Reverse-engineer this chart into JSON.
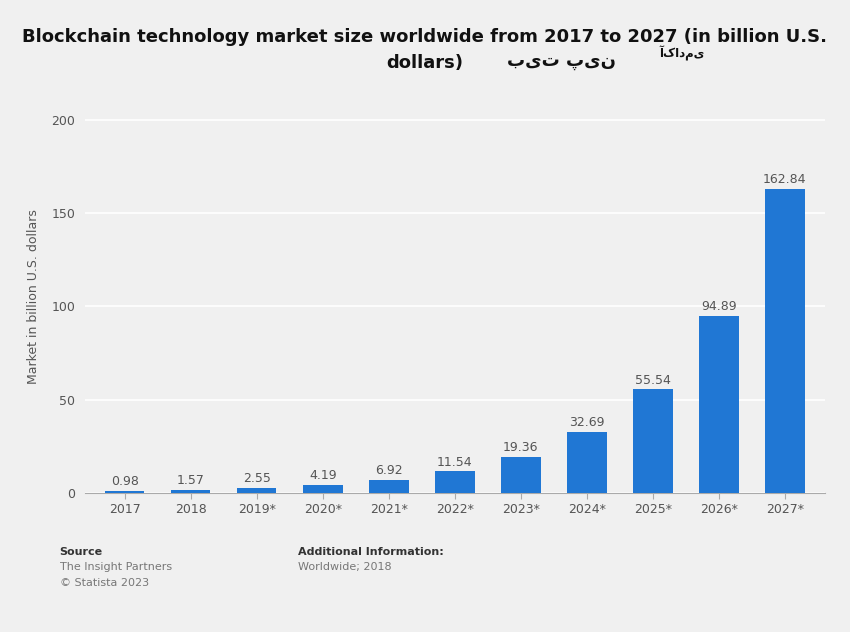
{
  "title_line1": "Blockchain technology market size worldwide from 2017 to 2027 (in billion U.S.",
  "title_line2": "dollars)",
  "categories": [
    "2017",
    "2018",
    "2019*",
    "2020*",
    "2021*",
    "2022*",
    "2023*",
    "2024*",
    "2025*",
    "2026*",
    "2027*"
  ],
  "values": [
    0.98,
    1.57,
    2.55,
    4.19,
    6.92,
    11.54,
    19.36,
    32.69,
    55.54,
    94.89,
    162.84
  ],
  "bar_color": "#2077d4",
  "ylabel": "Market in billion U.S. dollars",
  "ylim": [
    0,
    210
  ],
  "yticks": [
    0,
    50,
    100,
    150,
    200
  ],
  "background_color": "#f0f0f0",
  "plot_bg_color": "#f0f0f0",
  "grid_color": "#ffffff",
  "title_fontsize": 13,
  "label_fontsize": 9,
  "tick_fontsize": 9,
  "value_label_color": "#555555",
  "source_line1": "Source",
  "source_line2": "The Insight Partners",
  "source_line3": "© Statista 2023",
  "additional_line1": "Additional Information:",
  "additional_line2": "Worldwide; 2018",
  "watermark_text": "بیت پین",
  "watermark_label": "آکادمی",
  "watermark_bg": "#57e85a"
}
